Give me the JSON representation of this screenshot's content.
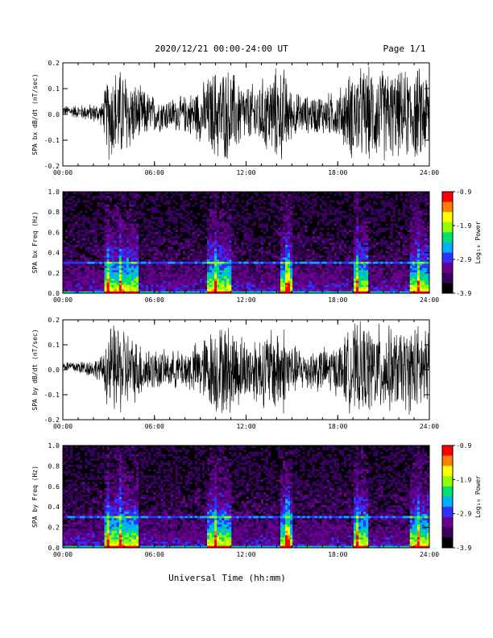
{
  "header": {
    "title": "2020/12/21  00:00-24:00 UT",
    "page": "Page 1/1"
  },
  "xaxis_label": "Universal Time (hh:mm)",
  "colors": {
    "colormap": [
      "#000000",
      "#3a0060",
      "#6a0090",
      "#3030ff",
      "#00b0ff",
      "#00e070",
      "#90ff00",
      "#ffff00",
      "#ff8000",
      "#ff0000"
    ],
    "waveform": "#000000",
    "axis": "#000000"
  },
  "chart_data": [
    {
      "type": "line",
      "title": "",
      "ylabel": "SPA bx dB/dt (nT/sec)",
      "xlabel": "",
      "xlim": [
        0,
        24
      ],
      "ylim": [
        -0.2,
        0.2
      ],
      "xticks": [
        "00:00",
        "06:00",
        "12:00",
        "18:00",
        "24:00"
      ],
      "yticks": [
        "-0.2",
        "-0.1",
        "0.0",
        "0.1",
        "0.2"
      ],
      "series": [
        {
          "x": [
            0,
            1,
            2,
            2.6,
            3,
            3.5,
            4,
            4.5,
            5,
            6,
            7,
            8,
            9,
            10,
            10.5,
            11,
            12,
            13,
            14,
            14.5,
            15,
            16,
            17,
            18,
            19,
            20,
            21,
            22,
            23,
            24
          ],
          "amplitude": [
            0.02,
            0.03,
            0.04,
            0.05,
            0.2,
            0.2,
            0.2,
            0.15,
            0.12,
            0.08,
            0.07,
            0.08,
            0.12,
            0.2,
            0.2,
            0.2,
            0.12,
            0.15,
            0.2,
            0.2,
            0.1,
            0.08,
            0.09,
            0.1,
            0.2,
            0.2,
            0.2,
            0.18,
            0.2,
            0.2
          ]
        }
      ]
    },
    {
      "type": "heatmap",
      "title": "",
      "ylabel": "SPA bx Freq (Hz)",
      "xlabel": "",
      "xlim": [
        0,
        24
      ],
      "ylim": [
        0.0,
        1.0
      ],
      "xticks": [
        "00:00",
        "06:00",
        "12:00",
        "18:00",
        "24:00"
      ],
      "yticks": [
        "0.0",
        "0.2",
        "0.4",
        "0.6",
        "0.8",
        "1.0"
      ],
      "colorbar": {
        "label": "Log₁₀ Power",
        "min": -3.9,
        "max": -0.9,
        "ticks": [
          "-0.9",
          "-1.9",
          "-2.9",
          "-3.9"
        ]
      },
      "features": {
        "line_frequency_hz": 0.3,
        "bursts_hours": [
          3.0,
          3.8,
          10.0,
          14.7,
          19.3,
          23.3
        ],
        "activity_hours": [
          [
            2.8,
            5.0
          ],
          [
            9.5,
            11.0
          ],
          [
            14.3,
            15.0
          ],
          [
            19.0,
            20.0
          ],
          [
            22.7,
            24.0
          ]
        ]
      }
    },
    {
      "type": "line",
      "title": "",
      "ylabel": "SPA by dB/dt (nT/sec)",
      "xlabel": "",
      "xlim": [
        0,
        24
      ],
      "ylim": [
        -0.2,
        0.2
      ],
      "xticks": [
        "00:00",
        "06:00",
        "12:00",
        "18:00",
        "24:00"
      ],
      "yticks": [
        "-0.2",
        "-0.1",
        "0.0",
        "0.1",
        "0.2"
      ],
      "series": [
        {
          "x": [
            0,
            1,
            2,
            2.6,
            3,
            3.5,
            4,
            4.5,
            5,
            6,
            7,
            8,
            9,
            10,
            10.5,
            11,
            12,
            13,
            14,
            14.5,
            15,
            16,
            17,
            18,
            19,
            20,
            21,
            22,
            23,
            24
          ],
          "amplitude": [
            0.02,
            0.03,
            0.04,
            0.06,
            0.2,
            0.2,
            0.2,
            0.15,
            0.13,
            0.09,
            0.08,
            0.09,
            0.13,
            0.2,
            0.2,
            0.2,
            0.14,
            0.16,
            0.2,
            0.2,
            0.11,
            0.09,
            0.1,
            0.11,
            0.2,
            0.2,
            0.2,
            0.17,
            0.2,
            0.2
          ]
        }
      ]
    },
    {
      "type": "heatmap",
      "title": "",
      "ylabel": "SPA by Freq (Hz)",
      "xlabel": "",
      "xlim": [
        0,
        24
      ],
      "ylim": [
        0.0,
        1.0
      ],
      "xticks": [
        "00:00",
        "06:00",
        "12:00",
        "18:00",
        "24:00"
      ],
      "yticks": [
        "0.0",
        "0.2",
        "0.4",
        "0.6",
        "0.8",
        "1.0"
      ],
      "colorbar": {
        "label": "Log₁₀ Power",
        "min": -3.9,
        "max": -0.9,
        "ticks": [
          "-0.9",
          "-1.9",
          "-2.9",
          "-3.9"
        ]
      },
      "features": {
        "line_frequency_hz": 0.3,
        "bursts_hours": [
          3.0,
          3.8,
          10.0,
          14.7,
          19.3,
          23.3
        ],
        "activity_hours": [
          [
            2.8,
            5.0
          ],
          [
            9.5,
            11.0
          ],
          [
            14.3,
            15.0
          ],
          [
            19.0,
            20.0
          ],
          [
            22.7,
            24.0
          ]
        ]
      }
    }
  ]
}
